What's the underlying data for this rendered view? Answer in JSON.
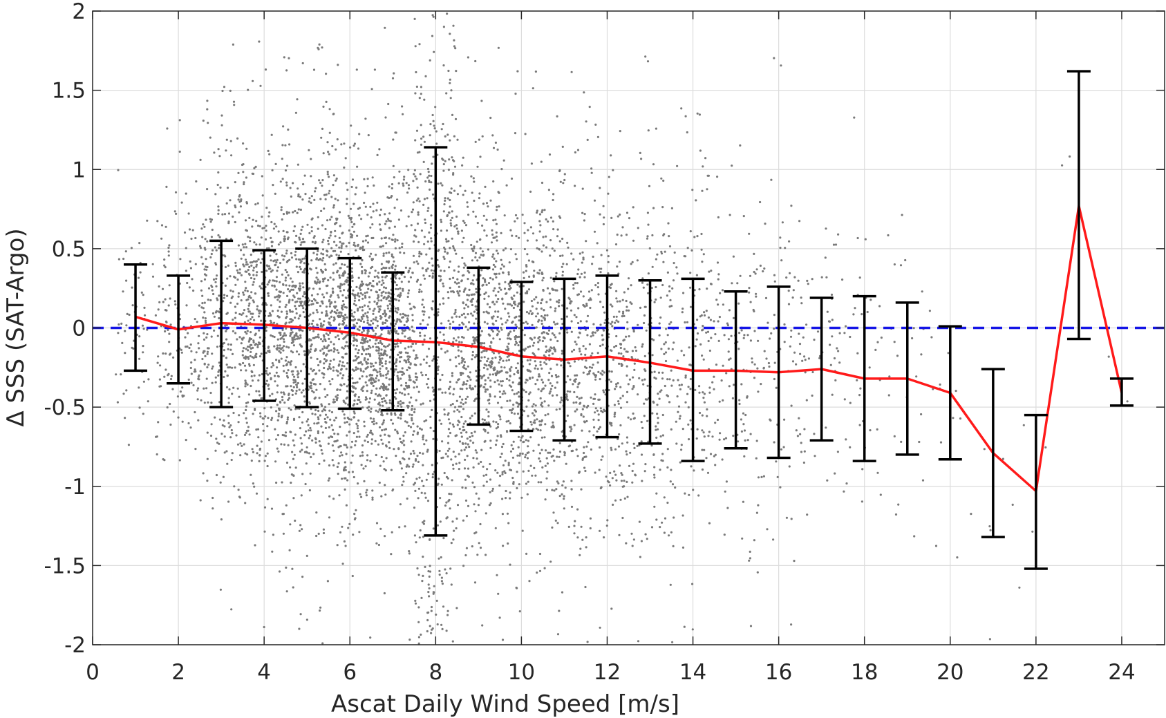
{
  "chart_data": {
    "type": "scatter",
    "title": "",
    "xlabel": "Ascat Daily Wind Speed [m/s]",
    "ylabel": "Δ SSS (SAT-Argo)",
    "xlim": [
      0,
      25
    ],
    "ylim": [
      -2,
      2
    ],
    "xticks": [
      0,
      2,
      4,
      6,
      8,
      10,
      12,
      14,
      16,
      18,
      20,
      22,
      24
    ],
    "yticks": [
      -2,
      -1.5,
      -1,
      -0.5,
      0,
      0.5,
      1,
      1.5,
      2
    ],
    "xtick_labels": [
      "0",
      "2",
      "4",
      "6",
      "8",
      "10",
      "12",
      "14",
      "16",
      "18",
      "20",
      "22",
      "24"
    ],
    "ytick_labels": [
      "-2",
      "-1.5",
      "-1",
      "-0.5",
      "0",
      "0.5",
      "1",
      "1.5",
      "2"
    ],
    "grid": true,
    "reference_line": {
      "y": 0,
      "color": "#1414e6",
      "style": "dashed"
    },
    "scatter_color": "#7a7a7a",
    "mean_line_color": "#ff1a1a",
    "errorbar_color": "#000000",
    "series": [
      {
        "x": [
          1,
          2,
          3,
          4,
          5,
          6,
          7,
          8,
          9,
          10,
          11,
          12,
          13,
          14,
          15,
          16,
          17,
          18,
          19,
          20,
          21,
          22,
          23,
          24
        ],
        "mean": [
          0.07,
          -0.01,
          0.03,
          0.02,
          0.0,
          -0.03,
          -0.08,
          -0.09,
          -0.12,
          -0.18,
          -0.2,
          -0.18,
          -0.22,
          -0.27,
          -0.27,
          -0.28,
          -0.26,
          -0.32,
          -0.32,
          -0.41,
          -0.79,
          -1.03,
          0.77,
          -0.41
        ],
        "upper": [
          0.4,
          0.33,
          0.55,
          0.49,
          0.5,
          0.44,
          0.35,
          1.14,
          0.38,
          0.29,
          0.31,
          0.33,
          0.3,
          0.31,
          0.23,
          0.26,
          0.19,
          0.2,
          0.16,
          0.01,
          -0.26,
          -0.55,
          1.62,
          -0.32
        ],
        "lower": [
          -0.27,
          -0.35,
          -0.5,
          -0.46,
          -0.5,
          -0.51,
          -0.52,
          -1.31,
          -0.61,
          -0.65,
          -0.71,
          -0.69,
          -0.73,
          -0.84,
          -0.76,
          -0.82,
          -0.71,
          -0.84,
          -0.8,
          -0.83,
          -1.32,
          -1.52,
          -0.07,
          -0.49
        ]
      }
    ]
  }
}
